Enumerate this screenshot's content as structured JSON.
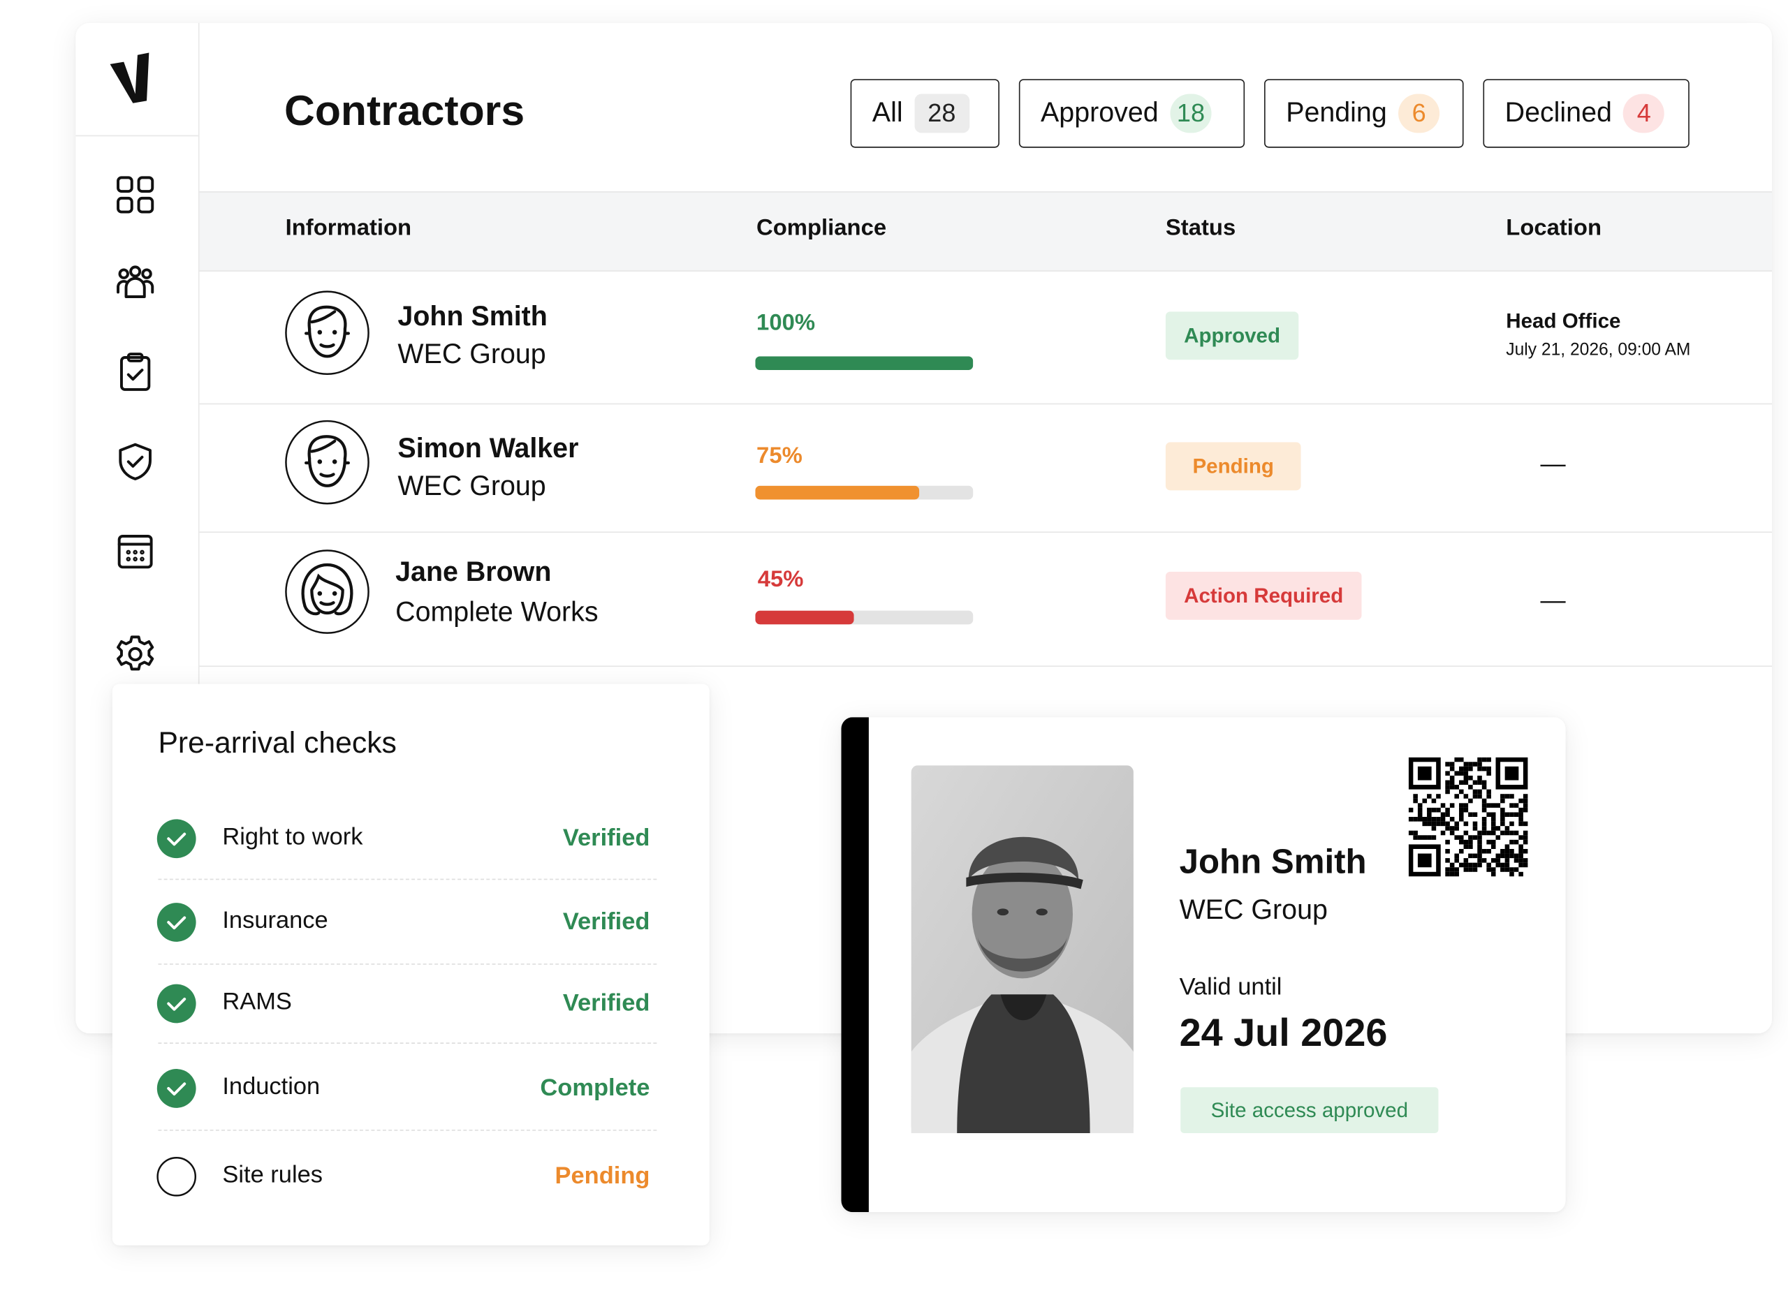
{
  "header": {
    "title": "Contractors"
  },
  "tabs": [
    {
      "label": "All",
      "count": 28
    },
    {
      "label": "Approved",
      "count": 18
    },
    {
      "label": "Pending",
      "count": 6
    },
    {
      "label": "Declined",
      "count": 4
    }
  ],
  "table": {
    "columns": [
      "Information",
      "Compliance",
      "Status",
      "Location"
    ],
    "rows": [
      {
        "name": "John Smith",
        "company": "WEC Group",
        "compliance": {
          "value": 100,
          "label": "100%"
        },
        "status": "Approved",
        "location": "Head Office",
        "time": "July 21, 2026, 09:00 AM"
      },
      {
        "name": "Simon Walker",
        "company": "WEC Group",
        "compliance": {
          "value": 75,
          "label": "75%"
        },
        "status": "Pending",
        "location": "—"
      },
      {
        "name": "Jane Brown",
        "company": "Complete Works",
        "compliance": {
          "value": 45,
          "label": "45%"
        },
        "status": "Action Required",
        "location": "—"
      }
    ]
  },
  "checks": {
    "title": "Pre-arrival checks",
    "items": [
      {
        "label": "Right to work",
        "status": "Verified"
      },
      {
        "label": "Insurance",
        "status": "Verified"
      },
      {
        "label": "RAMS",
        "status": "Verified"
      },
      {
        "label": "Induction",
        "status": "Complete"
      },
      {
        "label": "Site rules",
        "status": "Pending"
      }
    ]
  },
  "id_card": {
    "name": "John Smith",
    "company": "WEC Group",
    "valid_label": "Valid until",
    "valid_date": "24 Jul 2026",
    "badge": "Site access approved"
  }
}
